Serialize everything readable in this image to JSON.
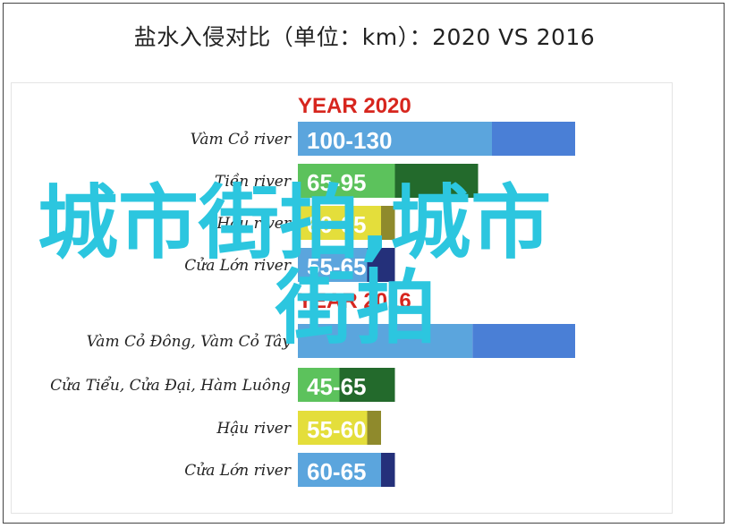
{
  "title": "盐水入侵对比（单位：km）：2020 VS 2016",
  "watermark": {
    "line1": "城市街拍,城市",
    "line2": "街拍"
  },
  "chart_data": [
    {
      "type": "bar",
      "title": "YEAR 2020",
      "categories": [
        "Vàm Cỏ river",
        "Tiền river",
        "Hậu river",
        "Cửa Lớn river"
      ],
      "range_labels": [
        "100-130",
        "65-95",
        "60-65",
        "55-65"
      ],
      "series": [
        {
          "values": [
            [
              100,
              130
            ],
            [
              65,
              95
            ],
            [
              60,
              65
            ],
            [
              55,
              65
            ]
          ]
        }
      ],
      "colors": {
        "primary": [
          "#5ba5dd",
          "#5cc25c",
          "#e4de3b",
          "#5ba5dd"
        ],
        "extension": [
          "#4a7fd6",
          "#236a2c",
          "#8f8a2c",
          "#24307a"
        ]
      }
    },
    {
      "type": "bar",
      "title": "YEAR 2016",
      "categories": [
        "Vàm Cỏ Đông, Vàm Cỏ Tây",
        "Cửa Tiểu, Cửa Đại, Hàm Luông",
        "Hậu river",
        "Cửa Lớn river"
      ],
      "range_labels": [
        "",
        "45-65",
        "55-60",
        "60-65"
      ],
      "series": [
        {
          "values": [
            [
              93,
              130
            ],
            [
              45,
              65
            ],
            [
              55,
              60
            ],
            [
              60,
              65
            ]
          ]
        }
      ],
      "colors": {
        "primary": [
          "#5ba5dd",
          "#5cc25c",
          "#e4de3b",
          "#5ba5dd"
        ],
        "extension": [
          "#4a7fd6",
          "#236a2c",
          "#8f8a2c",
          "#24307a"
        ]
      }
    }
  ]
}
